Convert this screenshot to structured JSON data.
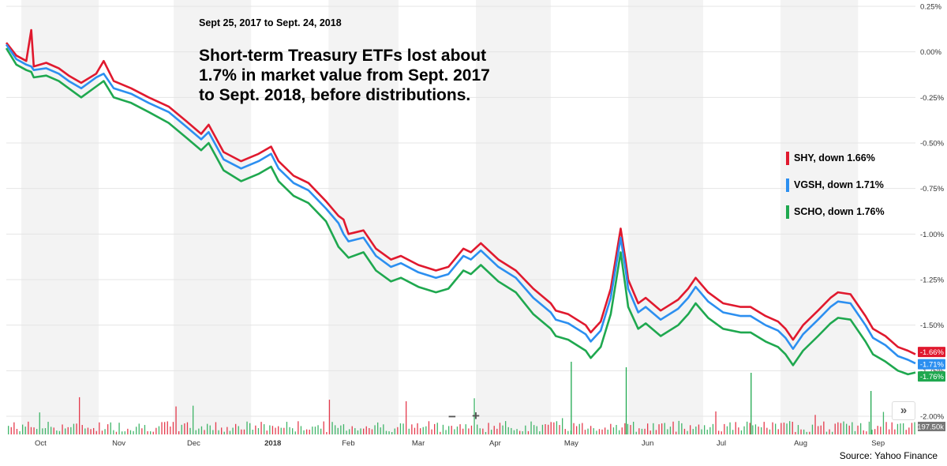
{
  "chart_data": {
    "type": "line",
    "title": "Short-term Treasury ETFs lost about\n1.7% in market value from Sept. 2017\nto Sept. 2018, before distributions.",
    "subtitle": "Sept 25, 2017 to Sept. 24, 2018",
    "source": "Source: Yahoo Finance",
    "y_tick_labels": [
      "0.25%",
      "0.00%",
      "-0.25%",
      "-0.50%",
      "-0.75%",
      "-1.00%",
      "-1.25%",
      "-1.50%",
      "-1.75%",
      "-2.00%"
    ],
    "y_tick_values": [
      0.25,
      0.0,
      -0.25,
      -0.5,
      -0.75,
      -1.0,
      -1.25,
      -1.5,
      -1.75,
      -2.0
    ],
    "ylim": [
      -2.0,
      0.25
    ],
    "x_tick_labels": [
      "Oct",
      "Nov",
      "Dec",
      "2018",
      "Feb",
      "Mar",
      "Apr",
      "May",
      "Jun",
      "Jul",
      "Aug",
      "Sep"
    ],
    "x_tick_dates": [
      "2017-10-01",
      "2017-11-01",
      "2017-12-01",
      "2018-01-01",
      "2018-02-01",
      "2018-03-01",
      "2018-04-01",
      "2018-05-01",
      "2018-06-01",
      "2018-07-01",
      "2018-08-01",
      "2018-09-01"
    ],
    "xlim": [
      "2017-09-25",
      "2018-09-24"
    ],
    "grid": true,
    "legend_position": "right",
    "volume_label": "197.50k",
    "series": [
      {
        "name": "SHY, down 1.66%",
        "color": "#e0192e",
        "end_label": "-1.66%",
        "points": [
          [
            "2017-09-25",
            0.05
          ],
          [
            "2017-09-29",
            -0.02
          ],
          [
            "2017-10-03",
            -0.05
          ],
          [
            "2017-10-05",
            0.12
          ],
          [
            "2017-10-06",
            -0.08
          ],
          [
            "2017-10-11",
            -0.06
          ],
          [
            "2017-10-16",
            -0.09
          ],
          [
            "2017-10-20",
            -0.13
          ],
          [
            "2017-10-25",
            -0.17
          ],
          [
            "2017-10-31",
            -0.12
          ],
          [
            "2017-11-03",
            -0.05
          ],
          [
            "2017-11-07",
            -0.16
          ],
          [
            "2017-11-14",
            -0.2
          ],
          [
            "2017-11-21",
            -0.25
          ],
          [
            "2017-11-29",
            -0.3
          ],
          [
            "2017-12-06",
            -0.38
          ],
          [
            "2017-12-12",
            -0.45
          ],
          [
            "2017-12-15",
            -0.4
          ],
          [
            "2017-12-21",
            -0.55
          ],
          [
            "2017-12-28",
            -0.6
          ],
          [
            "2018-01-04",
            -0.56
          ],
          [
            "2018-01-09",
            -0.52
          ],
          [
            "2018-01-12",
            -0.6
          ],
          [
            "2018-01-18",
            -0.68
          ],
          [
            "2018-01-24",
            -0.72
          ],
          [
            "2018-01-31",
            -0.82
          ],
          [
            "2018-02-05",
            -0.9
          ],
          [
            "2018-02-07",
            -0.92
          ],
          [
            "2018-02-09",
            -1.0
          ],
          [
            "2018-02-15",
            -0.98
          ],
          [
            "2018-02-20",
            -1.08
          ],
          [
            "2018-02-26",
            -1.14
          ],
          [
            "2018-03-02",
            -1.12
          ],
          [
            "2018-03-09",
            -1.17
          ],
          [
            "2018-03-16",
            -1.2
          ],
          [
            "2018-03-21",
            -1.18
          ],
          [
            "2018-03-27",
            -1.08
          ],
          [
            "2018-03-30",
            -1.1
          ],
          [
            "2018-04-03",
            -1.05
          ],
          [
            "2018-04-10",
            -1.14
          ],
          [
            "2018-04-17",
            -1.2
          ],
          [
            "2018-04-24",
            -1.3
          ],
          [
            "2018-05-01",
            -1.38
          ],
          [
            "2018-05-03",
            -1.42
          ],
          [
            "2018-05-08",
            -1.44
          ],
          [
            "2018-05-15",
            -1.5
          ],
          [
            "2018-05-17",
            -1.54
          ],
          [
            "2018-05-21",
            -1.48
          ],
          [
            "2018-05-25",
            -1.3
          ],
          [
            "2018-05-29",
            -0.97
          ],
          [
            "2018-05-31",
            -1.15
          ],
          [
            "2018-06-01",
            -1.25
          ],
          [
            "2018-06-05",
            -1.38
          ],
          [
            "2018-06-08",
            -1.35
          ],
          [
            "2018-06-14",
            -1.42
          ],
          [
            "2018-06-21",
            -1.36
          ],
          [
            "2018-06-25",
            -1.3
          ],
          [
            "2018-06-28",
            -1.24
          ],
          [
            "2018-07-03",
            -1.32
          ],
          [
            "2018-07-09",
            -1.38
          ],
          [
            "2018-07-16",
            -1.4
          ],
          [
            "2018-07-20",
            -1.4
          ],
          [
            "2018-07-26",
            -1.45
          ],
          [
            "2018-07-31",
            -1.48
          ],
          [
            "2018-08-03",
            -1.52
          ],
          [
            "2018-08-06",
            -1.58
          ],
          [
            "2018-08-10",
            -1.5
          ],
          [
            "2018-08-16",
            -1.42
          ],
          [
            "2018-08-21",
            -1.35
          ],
          [
            "2018-08-24",
            -1.32
          ],
          [
            "2018-08-29",
            -1.33
          ],
          [
            "2018-09-04",
            -1.45
          ],
          [
            "2018-09-07",
            -1.52
          ],
          [
            "2018-09-12",
            -1.56
          ],
          [
            "2018-09-17",
            -1.62
          ],
          [
            "2018-09-21",
            -1.64
          ],
          [
            "2018-09-24",
            -1.66
          ]
        ]
      },
      {
        "name": "VGSH, down 1.71%",
        "color": "#2c8ff0",
        "end_label": "-1.71%",
        "points": [
          [
            "2017-09-25",
            0.04
          ],
          [
            "2017-09-29",
            -0.04
          ],
          [
            "2017-10-03",
            -0.07
          ],
          [
            "2017-10-05",
            -0.08
          ],
          [
            "2017-10-06",
            -0.1
          ],
          [
            "2017-10-11",
            -0.09
          ],
          [
            "2017-10-16",
            -0.12
          ],
          [
            "2017-10-20",
            -0.16
          ],
          [
            "2017-10-25",
            -0.2
          ],
          [
            "2017-10-31",
            -0.14
          ],
          [
            "2017-11-03",
            -0.12
          ],
          [
            "2017-11-07",
            -0.2
          ],
          [
            "2017-11-14",
            -0.23
          ],
          [
            "2017-11-21",
            -0.28
          ],
          [
            "2017-11-29",
            -0.33
          ],
          [
            "2017-12-06",
            -0.41
          ],
          [
            "2017-12-12",
            -0.48
          ],
          [
            "2017-12-15",
            -0.44
          ],
          [
            "2017-12-21",
            -0.59
          ],
          [
            "2017-12-28",
            -0.64
          ],
          [
            "2018-01-04",
            -0.6
          ],
          [
            "2018-01-09",
            -0.56
          ],
          [
            "2018-01-12",
            -0.64
          ],
          [
            "2018-01-18",
            -0.72
          ],
          [
            "2018-01-24",
            -0.76
          ],
          [
            "2018-01-31",
            -0.86
          ],
          [
            "2018-02-05",
            -0.94
          ],
          [
            "2018-02-07",
            -1.0
          ],
          [
            "2018-02-09",
            -1.04
          ],
          [
            "2018-02-15",
            -1.02
          ],
          [
            "2018-02-20",
            -1.12
          ],
          [
            "2018-02-26",
            -1.18
          ],
          [
            "2018-03-02",
            -1.16
          ],
          [
            "2018-03-09",
            -1.21
          ],
          [
            "2018-03-16",
            -1.24
          ],
          [
            "2018-03-21",
            -1.22
          ],
          [
            "2018-03-27",
            -1.12
          ],
          [
            "2018-03-30",
            -1.14
          ],
          [
            "2018-04-03",
            -1.09
          ],
          [
            "2018-04-10",
            -1.18
          ],
          [
            "2018-04-17",
            -1.24
          ],
          [
            "2018-04-24",
            -1.35
          ],
          [
            "2018-05-01",
            -1.43
          ],
          [
            "2018-05-03",
            -1.47
          ],
          [
            "2018-05-08",
            -1.49
          ],
          [
            "2018-05-15",
            -1.55
          ],
          [
            "2018-05-17",
            -1.59
          ],
          [
            "2018-05-21",
            -1.53
          ],
          [
            "2018-05-25",
            -1.35
          ],
          [
            "2018-05-29",
            -1.02
          ],
          [
            "2018-05-31",
            -1.2
          ],
          [
            "2018-06-01",
            -1.3
          ],
          [
            "2018-06-05",
            -1.43
          ],
          [
            "2018-06-08",
            -1.4
          ],
          [
            "2018-06-14",
            -1.47
          ],
          [
            "2018-06-21",
            -1.41
          ],
          [
            "2018-06-25",
            -1.35
          ],
          [
            "2018-06-28",
            -1.29
          ],
          [
            "2018-07-03",
            -1.37
          ],
          [
            "2018-07-09",
            -1.43
          ],
          [
            "2018-07-16",
            -1.45
          ],
          [
            "2018-07-20",
            -1.45
          ],
          [
            "2018-07-26",
            -1.5
          ],
          [
            "2018-07-31",
            -1.53
          ],
          [
            "2018-08-03",
            -1.57
          ],
          [
            "2018-08-06",
            -1.63
          ],
          [
            "2018-08-10",
            -1.55
          ],
          [
            "2018-08-16",
            -1.47
          ],
          [
            "2018-08-21",
            -1.4
          ],
          [
            "2018-08-24",
            -1.37
          ],
          [
            "2018-08-29",
            -1.38
          ],
          [
            "2018-09-04",
            -1.5
          ],
          [
            "2018-09-07",
            -1.57
          ],
          [
            "2018-09-12",
            -1.61
          ],
          [
            "2018-09-17",
            -1.67
          ],
          [
            "2018-09-21",
            -1.69
          ],
          [
            "2018-09-24",
            -1.71
          ]
        ]
      },
      {
        "name": "SCHO, down 1.76%",
        "color": "#1fa84f",
        "end_label": "-1.76%",
        "points": [
          [
            "2017-09-25",
            0.02
          ],
          [
            "2017-09-29",
            -0.07
          ],
          [
            "2017-10-03",
            -0.1
          ],
          [
            "2017-10-05",
            -0.11
          ],
          [
            "2017-10-06",
            -0.14
          ],
          [
            "2017-10-11",
            -0.13
          ],
          [
            "2017-10-16",
            -0.16
          ],
          [
            "2017-10-20",
            -0.2
          ],
          [
            "2017-10-25",
            -0.25
          ],
          [
            "2017-10-31",
            -0.19
          ],
          [
            "2017-11-03",
            -0.16
          ],
          [
            "2017-11-07",
            -0.25
          ],
          [
            "2017-11-14",
            -0.28
          ],
          [
            "2017-11-21",
            -0.33
          ],
          [
            "2017-11-29",
            -0.39
          ],
          [
            "2017-12-06",
            -0.47
          ],
          [
            "2017-12-12",
            -0.54
          ],
          [
            "2017-12-15",
            -0.5
          ],
          [
            "2017-12-21",
            -0.65
          ],
          [
            "2017-12-28",
            -0.71
          ],
          [
            "2018-01-04",
            -0.67
          ],
          [
            "2018-01-09",
            -0.63
          ],
          [
            "2018-01-12",
            -0.71
          ],
          [
            "2018-01-18",
            -0.79
          ],
          [
            "2018-01-24",
            -0.83
          ],
          [
            "2018-01-31",
            -0.93
          ],
          [
            "2018-02-05",
            -1.07
          ],
          [
            "2018-02-07",
            -1.1
          ],
          [
            "2018-02-09",
            -1.13
          ],
          [
            "2018-02-15",
            -1.1
          ],
          [
            "2018-02-20",
            -1.2
          ],
          [
            "2018-02-26",
            -1.26
          ],
          [
            "2018-03-02",
            -1.24
          ],
          [
            "2018-03-09",
            -1.29
          ],
          [
            "2018-03-16",
            -1.32
          ],
          [
            "2018-03-21",
            -1.3
          ],
          [
            "2018-03-27",
            -1.2
          ],
          [
            "2018-03-30",
            -1.22
          ],
          [
            "2018-04-03",
            -1.17
          ],
          [
            "2018-04-10",
            -1.26
          ],
          [
            "2018-04-17",
            -1.32
          ],
          [
            "2018-04-24",
            -1.44
          ],
          [
            "2018-05-01",
            -1.52
          ],
          [
            "2018-05-03",
            -1.56
          ],
          [
            "2018-05-08",
            -1.58
          ],
          [
            "2018-05-15",
            -1.64
          ],
          [
            "2018-05-17",
            -1.68
          ],
          [
            "2018-05-21",
            -1.62
          ],
          [
            "2018-05-25",
            -1.44
          ],
          [
            "2018-05-29",
            -1.1
          ],
          [
            "2018-05-31",
            -1.3
          ],
          [
            "2018-06-01",
            -1.4
          ],
          [
            "2018-06-05",
            -1.52
          ],
          [
            "2018-06-08",
            -1.49
          ],
          [
            "2018-06-14",
            -1.56
          ],
          [
            "2018-06-21",
            -1.5
          ],
          [
            "2018-06-25",
            -1.44
          ],
          [
            "2018-06-28",
            -1.38
          ],
          [
            "2018-07-03",
            -1.46
          ],
          [
            "2018-07-09",
            -1.52
          ],
          [
            "2018-07-16",
            -1.54
          ],
          [
            "2018-07-20",
            -1.54
          ],
          [
            "2018-07-26",
            -1.59
          ],
          [
            "2018-07-31",
            -1.62
          ],
          [
            "2018-08-03",
            -1.66
          ],
          [
            "2018-08-06",
            -1.72
          ],
          [
            "2018-08-10",
            -1.64
          ],
          [
            "2018-08-16",
            -1.56
          ],
          [
            "2018-08-21",
            -1.49
          ],
          [
            "2018-08-24",
            -1.46
          ],
          [
            "2018-08-29",
            -1.47
          ],
          [
            "2018-09-04",
            -1.59
          ],
          [
            "2018-09-07",
            -1.66
          ],
          [
            "2018-09-12",
            -1.7
          ],
          [
            "2018-09-17",
            -1.75
          ],
          [
            "2018-09-21",
            -1.77
          ],
          [
            "2018-09-24",
            -1.76
          ]
        ]
      }
    ]
  },
  "controls": {
    "zoom_out": "−",
    "zoom_in": "+",
    "collapse": "»"
  }
}
